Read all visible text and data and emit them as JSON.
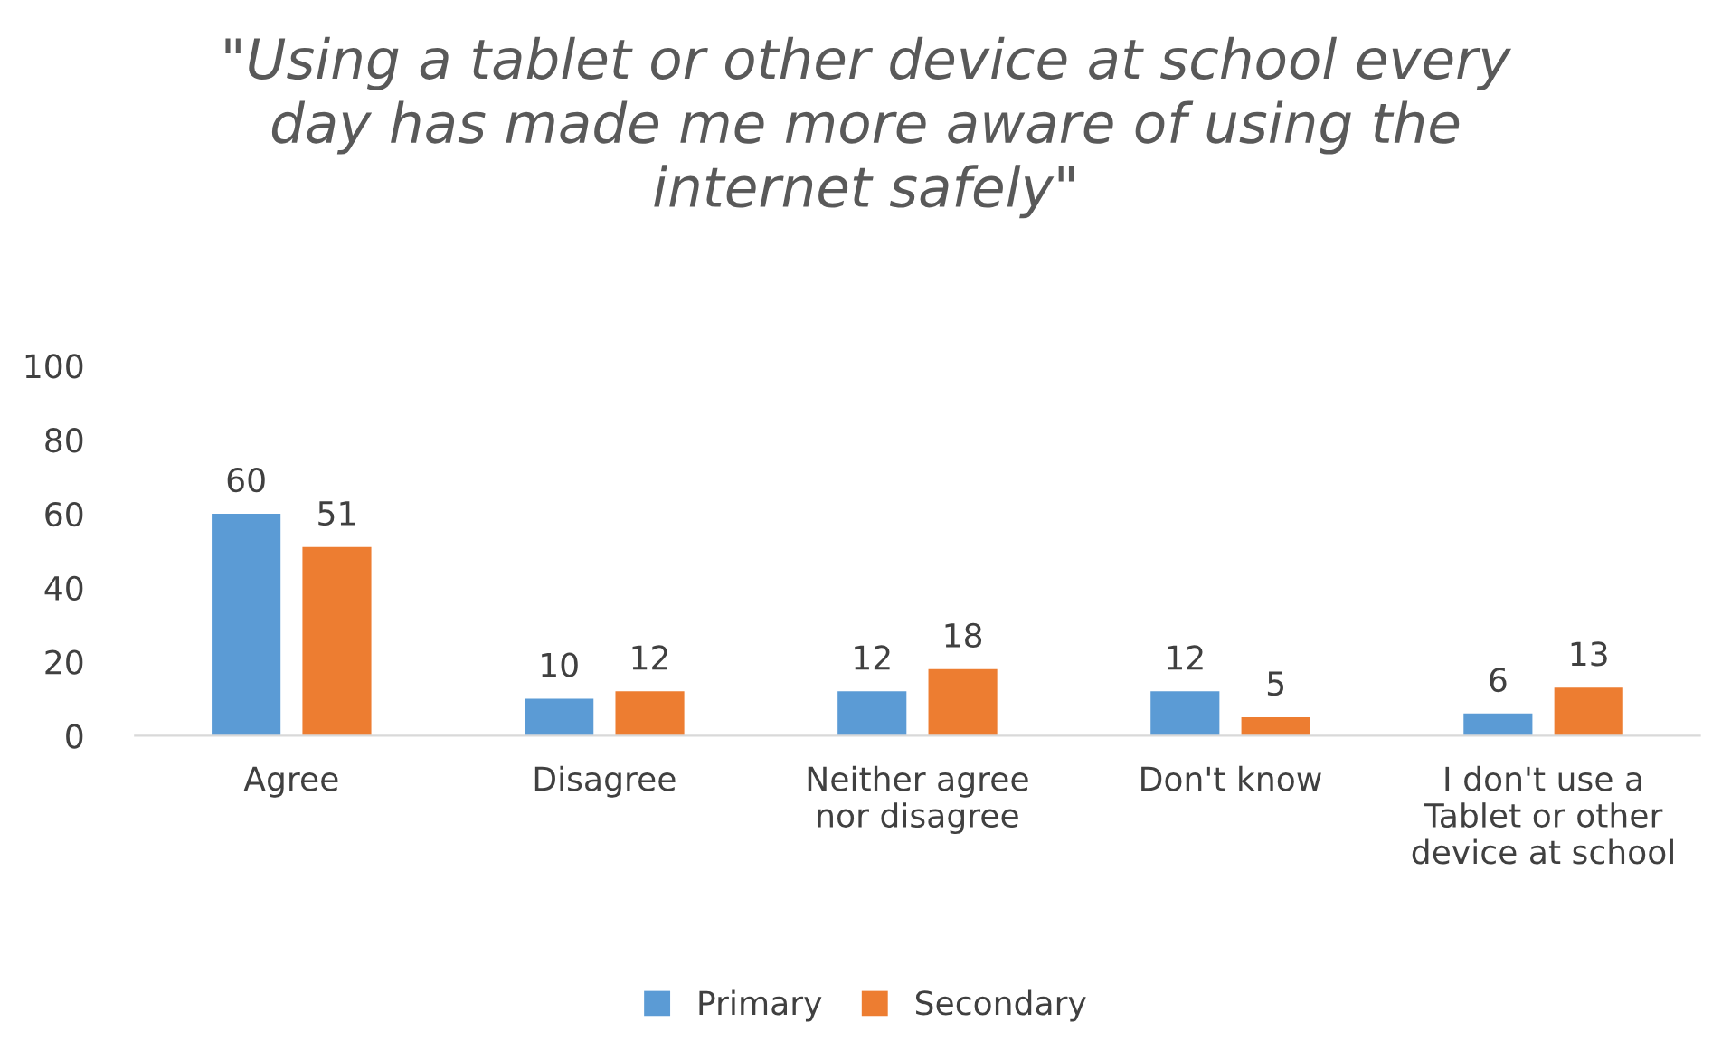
{
  "chart_data": {
    "type": "bar",
    "title": "\"Using a tablet or other device at school every\nday has made me more aware of using the\ninternet safely\"",
    "categories": [
      "Agree",
      "Disagree",
      "Neither agree\nnor disagree",
      "Don't know",
      "I don't use a\nTablet or other\ndevice at school"
    ],
    "series": [
      {
        "name": "Primary",
        "color": "#5b9bd5",
        "values": [
          60,
          10,
          12,
          12,
          6
        ]
      },
      {
        "name": "Secondary",
        "color": "#ed7d31",
        "values": [
          51,
          12,
          18,
          5,
          13
        ]
      }
    ],
    "ylim": [
      0,
      100
    ],
    "yticks": [
      0,
      20,
      40,
      60,
      80,
      100
    ],
    "data_labels": true,
    "legend": "bottom",
    "grid": false
  }
}
